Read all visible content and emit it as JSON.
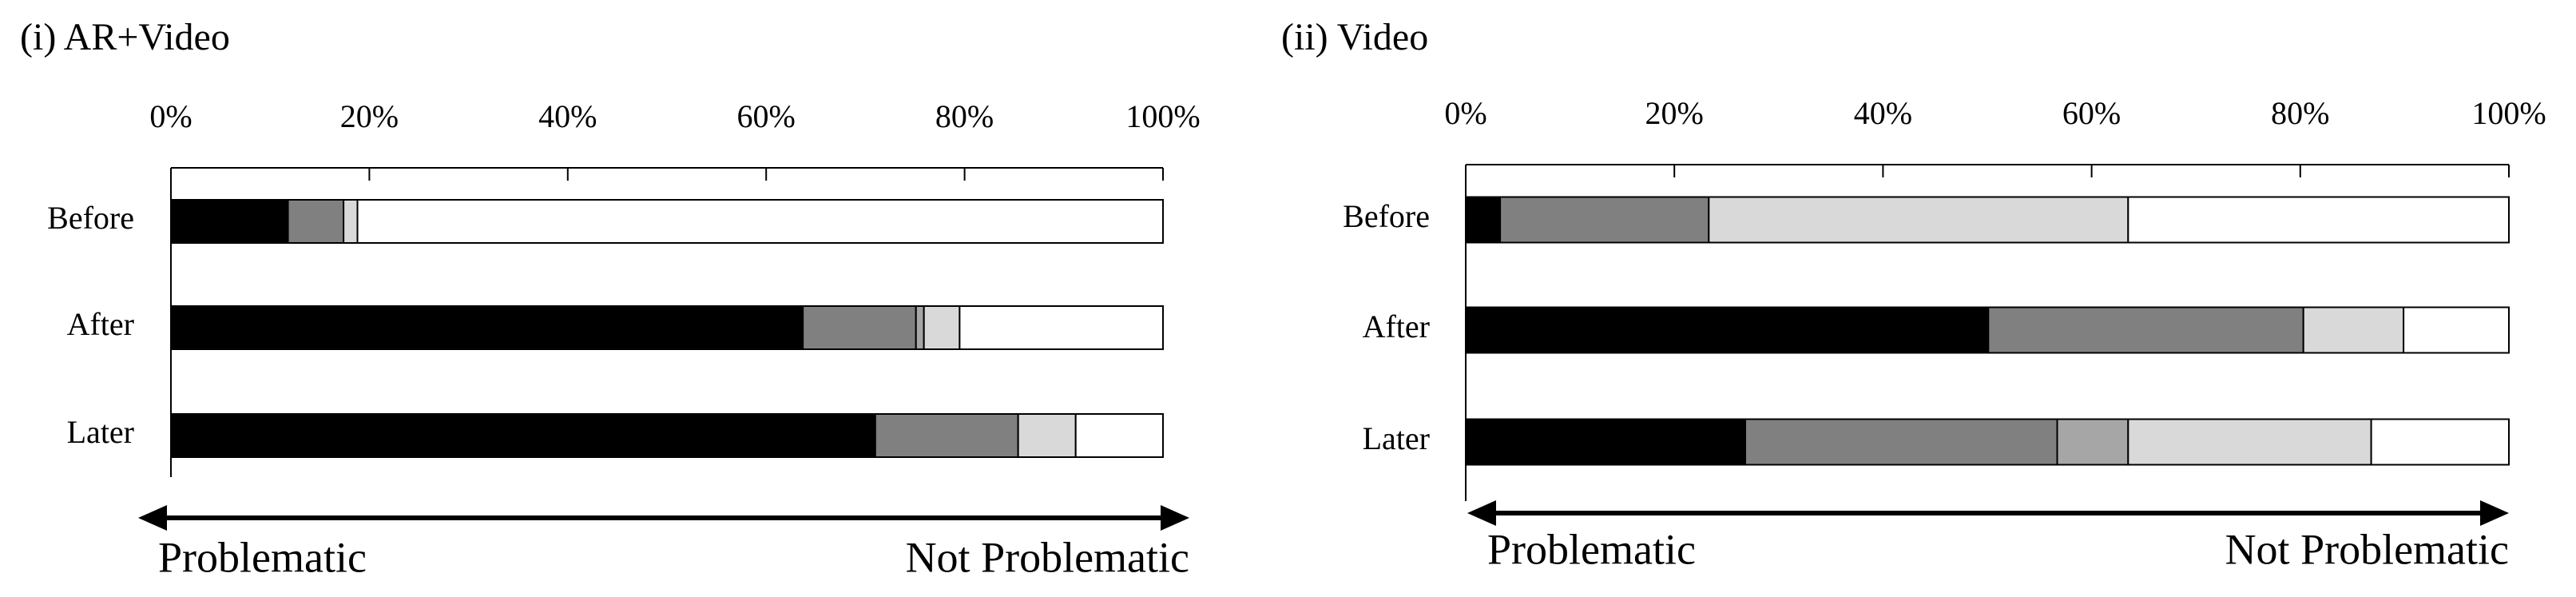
{
  "chart_data": [
    {
      "type": "bar",
      "orientation": "horizontal",
      "stacked": true,
      "title": "(i) AR+Video",
      "categories": [
        "Before",
        "After",
        "Later"
      ],
      "series": [
        {
          "color": "#000000",
          "values": [
            11.8,
            63.7,
            71.0
          ]
        },
        {
          "color": "#808080",
          "values": [
            5.6,
            11.4,
            14.4
          ]
        },
        {
          "color": "#a6a6a6",
          "values": [
            0,
            0.8,
            0
          ]
        },
        {
          "color": "#d9d9d9",
          "values": [
            1.4,
            3.6,
            5.8
          ]
        },
        {
          "color": "#ffffff",
          "values": [
            81.2,
            20.5,
            8.8
          ]
        }
      ],
      "xlim": [
        0,
        100
      ],
      "xticks": [
        {
          "value": 0,
          "label": "0%"
        },
        {
          "value": 20,
          "label": "20%"
        },
        {
          "value": 40,
          "label": "40%"
        },
        {
          "value": 60,
          "label": "60%"
        },
        {
          "value": 80,
          "label": "80%"
        },
        {
          "value": 100,
          "label": "100%"
        }
      ],
      "annotations": [
        "Problematic",
        "Not Problematic"
      ]
    },
    {
      "type": "bar",
      "orientation": "horizontal",
      "stacked": true,
      "title": "(ii) Video",
      "categories": [
        "Before",
        "After",
        "Later"
      ],
      "series": [
        {
          "color": "#000000",
          "values": [
            3.3,
            50.1,
            26.8
          ]
        },
        {
          "color": "#808080",
          "values": [
            20.0,
            30.2,
            29.9
          ]
        },
        {
          "color": "#a6a6a6",
          "values": [
            0,
            0,
            6.8
          ]
        },
        {
          "color": "#d9d9d9",
          "values": [
            40.2,
            9.6,
            23.3
          ]
        },
        {
          "color": "#ffffff",
          "values": [
            36.5,
            10.1,
            13.2
          ]
        }
      ],
      "xlim": [
        0,
        100
      ],
      "xticks": [
        {
          "value": 0,
          "label": "0%"
        },
        {
          "value": 20,
          "label": "20%"
        },
        {
          "value": 40,
          "label": "40%"
        },
        {
          "value": 60,
          "label": "60%"
        },
        {
          "value": 80,
          "label": "80%"
        },
        {
          "value": 100,
          "label": "100%"
        }
      ],
      "annotations": [
        "Problematic",
        "Not Problematic"
      ]
    }
  ]
}
